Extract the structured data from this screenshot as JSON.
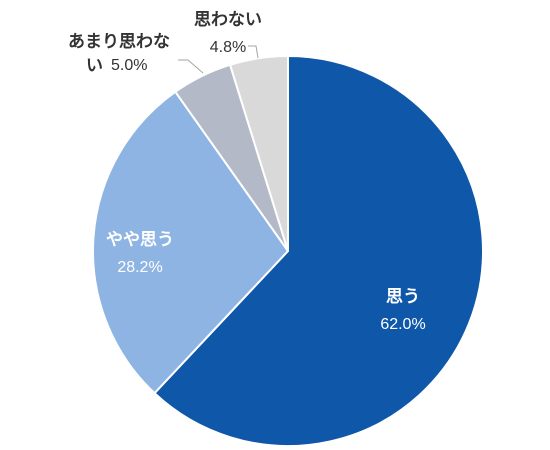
{
  "chart_data": {
    "type": "pie",
    "title": "",
    "start": "12 o'clock",
    "direction": "clockwise",
    "slices": [
      {
        "label": "思う",
        "value": 62.0,
        "value_label": "62.0%",
        "color": "#0f57a8"
      },
      {
        "label": "やや思う",
        "value": 28.2,
        "value_label": "28.2%",
        "color": "#8eb4e3"
      },
      {
        "label": "あまり思わない",
        "label_lines": [
          "あまり思わな",
          "い"
        ],
        "value": 5.0,
        "value_label": "5.0%",
        "color": "#b3b9c6"
      },
      {
        "label": "思わない",
        "value": 4.8,
        "value_label": "4.8%",
        "color": "#d9d9d9"
      }
    ]
  }
}
